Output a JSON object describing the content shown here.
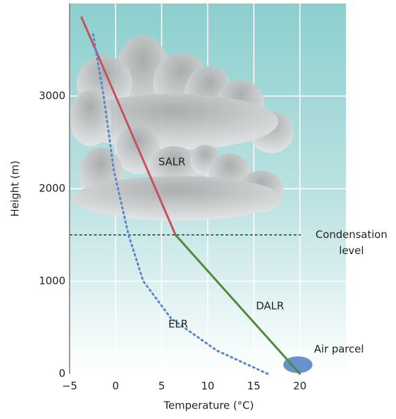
{
  "chart_data": {
    "type": "line",
    "x_label": "Temperature (°C)",
    "y_label": "Height (m)",
    "xlim": [
      -5,
      25
    ],
    "ylim": [
      0,
      4000
    ],
    "xticks": [
      {
        "value": -5,
        "label": "−5"
      },
      0,
      5,
      10,
      15,
      20
    ],
    "yticks": [
      0,
      1000,
      2000,
      3000
    ],
    "grid": true,
    "series": [
      {
        "name": "SALR",
        "color": "#c8505e",
        "style": "solid",
        "x": [
          -3.7,
          6.5
        ],
        "values": [
          3850,
          1500
        ]
      },
      {
        "name": "DALR",
        "color": "#4f8a3c",
        "style": "solid",
        "x": [
          6.5,
          20
        ],
        "values": [
          1500,
          0
        ]
      },
      {
        "name": "ELR",
        "color": "#5a86c8",
        "style": "dotted",
        "x": [
          16.5,
          11,
          6,
          3,
          1.4,
          -0.2,
          -1.3,
          -2.5
        ],
        "values": [
          0,
          250,
          600,
          1000,
          1500,
          2200,
          3000,
          3700
        ]
      }
    ],
    "hline": {
      "value": 1500,
      "label_lines": [
        "Condensation",
        "level"
      ]
    },
    "annotation": "Air parcel"
  }
}
